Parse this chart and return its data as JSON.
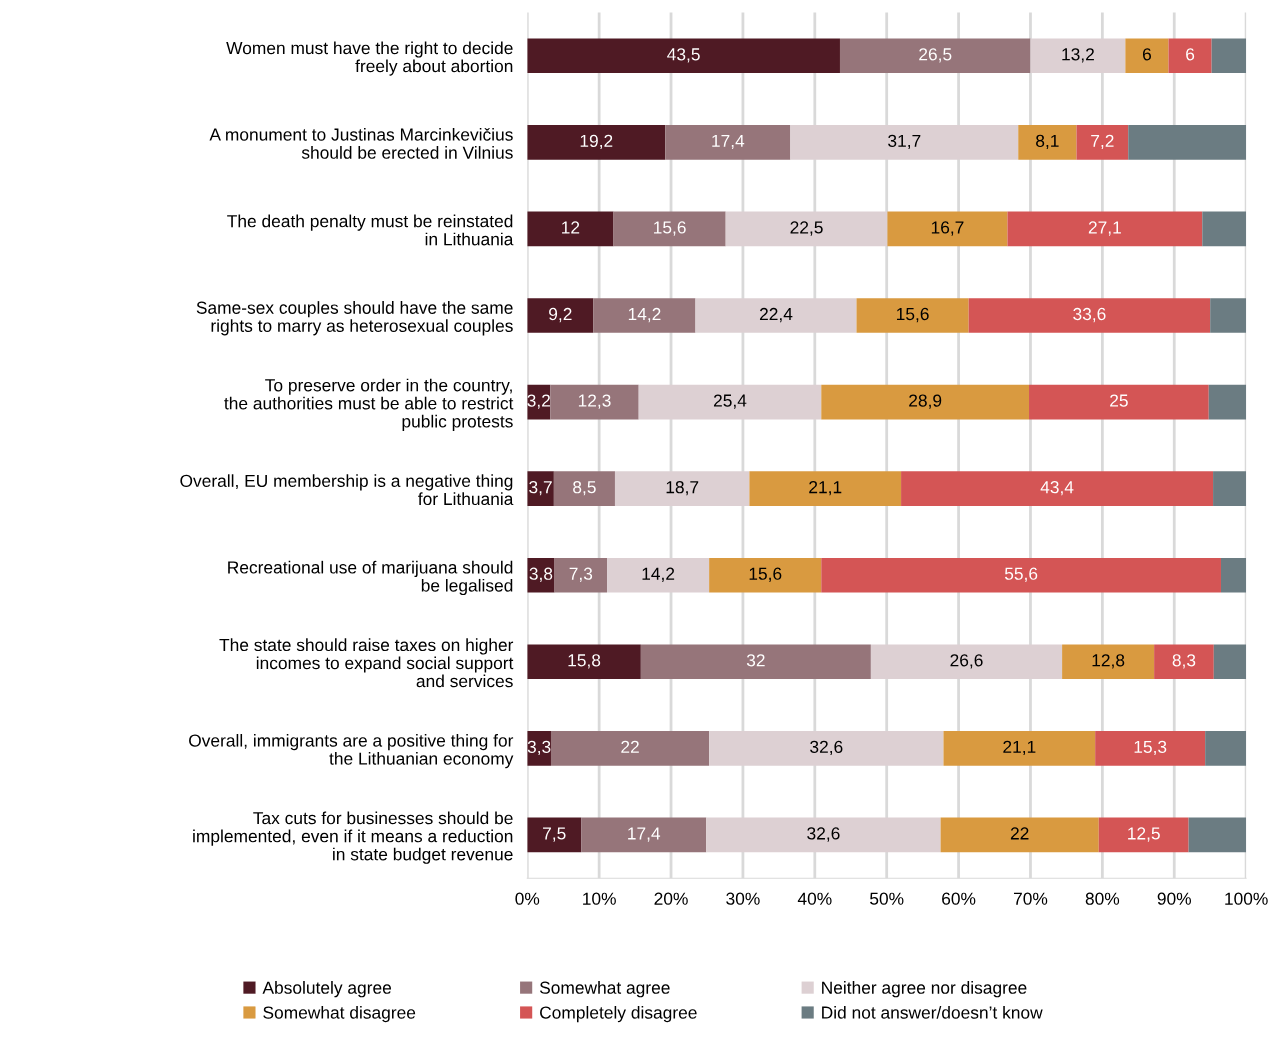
{
  "chart_data": {
    "type": "bar",
    "orientation": "horizontal",
    "stacked": true,
    "categories": [
      "Women must have the right to decide\nfreely about abortion",
      "A monument to Justinas Marcinkevičius\nshould be erected in Vilnius",
      "The death penalty must be reinstated\nin Lithuania",
      "Same-sex couples should have the same\nrights to marry as heterosexual couples",
      "To preserve order in the country,\nthe authorities must be able to restrict\npublic protests",
      "Overall, EU membership is a negative thing\nfor Lithuania",
      "Recreational use of marijuana should\nbe legalised",
      "The state should raise taxes on higher\nincomes to expand social support\nand services",
      "Overall, immigrants are a positive thing for\nthe Lithuanian economy",
      "Tax cuts for businesses should be\nimplemented, even if it means a reduction\nin state budget revenue"
    ],
    "series": [
      {
        "name": "Absolutely agree",
        "color": "#4f1a24",
        "values": [
          43.5,
          19.2,
          12,
          9.2,
          3.2,
          3.7,
          3.8,
          15.8,
          3.3,
          7.5
        ],
        "value_labels": [
          "43,5",
          "19,2",
          "12",
          "9,2",
          "3,2",
          "3,7",
          "3,8",
          "15,8",
          "3,3",
          "7,5"
        ]
      },
      {
        "name": "Somewhat agree",
        "color": "#96757a",
        "values": [
          26.5,
          17.4,
          15.6,
          14.2,
          12.3,
          8.5,
          7.3,
          32,
          22,
          17.4
        ],
        "value_labels": [
          "26,5",
          "17,4",
          "15,6",
          "14,2",
          "12,3",
          "8,5",
          "7,3",
          "32",
          "22",
          "17,4"
        ]
      },
      {
        "name": "Neither agree nor disagree",
        "color": "#ddd0d3",
        "values": [
          13.2,
          31.7,
          22.5,
          22.4,
          25.4,
          18.7,
          14.2,
          26.6,
          32.6,
          32.6
        ],
        "value_labels": [
          "13,2",
          "31,7",
          "22,5",
          "22,4",
          "25,4",
          "18,7",
          "14,2",
          "26,6",
          "32,6",
          "32,6"
        ]
      },
      {
        "name": "Somewhat disagree",
        "color": "#d99a40",
        "values": [
          6,
          8.1,
          16.7,
          15.6,
          28.9,
          21.1,
          15.6,
          12.8,
          21.1,
          22
        ],
        "value_labels": [
          "6",
          "8,1",
          "16,7",
          "15,6",
          "28,9",
          "21,1",
          "15,6",
          "12,8",
          "21,1",
          "22"
        ]
      },
      {
        "name": "Completely disagree",
        "color": "#d45555",
        "values": [
          6,
          7.2,
          27.1,
          33.6,
          25,
          43.4,
          55.6,
          8.3,
          15.3,
          12.5
        ],
        "value_labels": [
          "6",
          "7,2",
          "27,1",
          "33,6",
          "25",
          "43,4",
          "55,6",
          "8,3",
          "15,3",
          "12,5"
        ]
      },
      {
        "name": "Did not answer/doesn’t know",
        "color": "#6b7c82",
        "values": [
          4.8,
          16.4,
          6.1,
          5.0,
          5.2,
          4.6,
          3.5,
          4.5,
          5.7,
          8.0
        ],
        "value_labels": [
          null,
          null,
          null,
          null,
          null,
          null,
          null,
          null,
          null,
          null
        ]
      }
    ],
    "xlim": [
      0,
      100
    ],
    "xticks": [
      {
        "value": 0,
        "label": "0%"
      },
      {
        "value": 10,
        "label": "10%"
      },
      {
        "value": 20,
        "label": "20%"
      },
      {
        "value": 30,
        "label": "30%"
      },
      {
        "value": 40,
        "label": "40%"
      },
      {
        "value": 50,
        "label": "50%"
      },
      {
        "value": 60,
        "label": "60%"
      },
      {
        "value": 70,
        "label": "70%"
      },
      {
        "value": 80,
        "label": "80%"
      },
      {
        "value": 90,
        "label": "90%"
      },
      {
        "value": 100,
        "label": "100%"
      }
    ],
    "grid": "x",
    "legend": "bottom"
  }
}
